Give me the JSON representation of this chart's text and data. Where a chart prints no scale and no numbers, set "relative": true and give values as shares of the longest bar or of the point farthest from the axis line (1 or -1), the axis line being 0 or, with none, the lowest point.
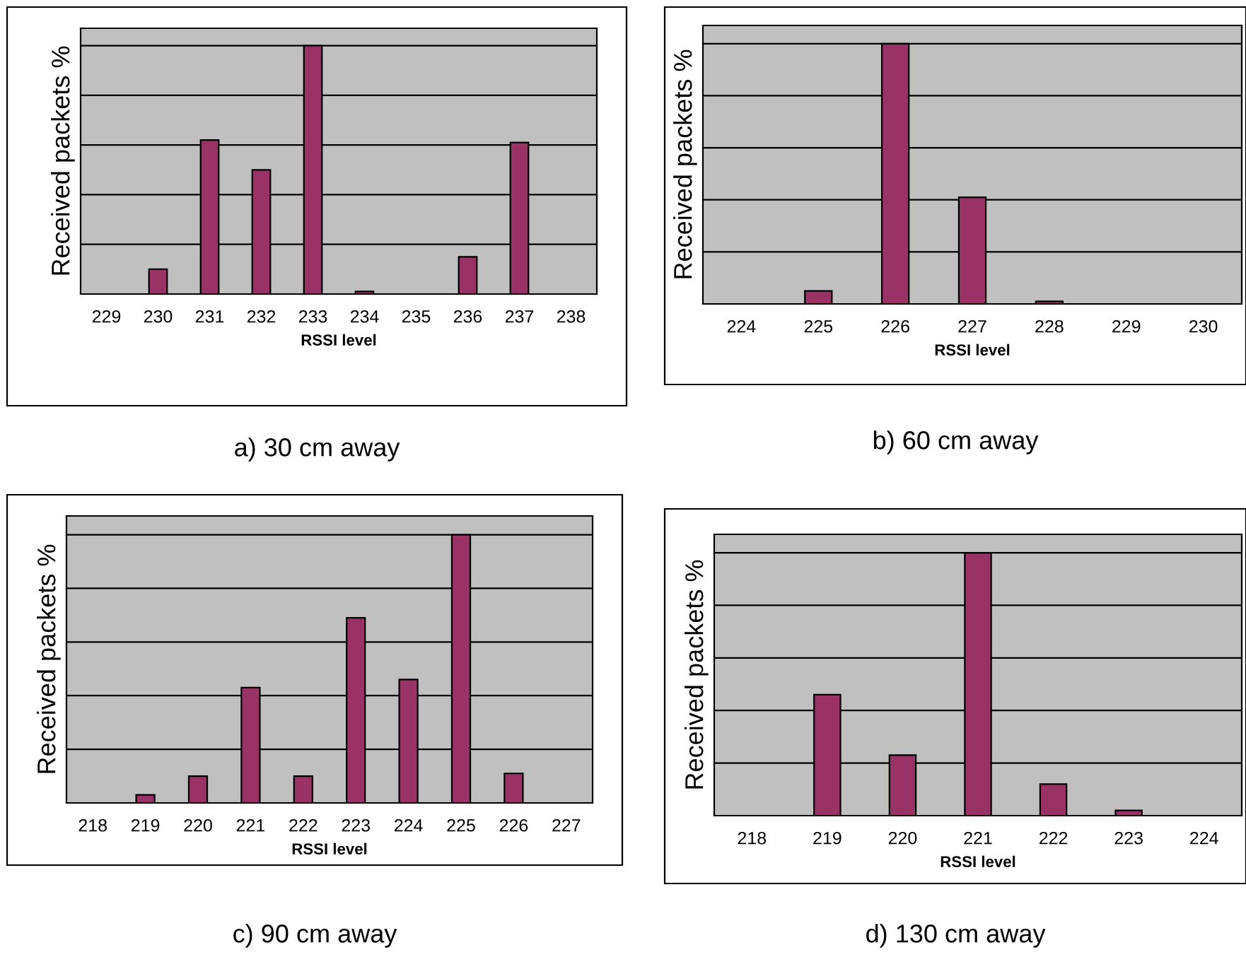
{
  "chart_data": [
    {
      "type": "bar",
      "relative": true,
      "categories": [
        "229",
        "230",
        "231",
        "232",
        "233",
        "234",
        "235",
        "236",
        "237",
        "238"
      ],
      "values": [
        0,
        0.1,
        0.62,
        0.5,
        1,
        0.01,
        0,
        0.15,
        0.61,
        0
      ],
      "color": "#993366",
      "xlabel": "RSSI level",
      "ylabel": "Received packets %",
      "grid": "y",
      "annotations": [
        "a) 30 cm away"
      ]
    },
    {
      "type": "bar",
      "relative": true,
      "categories": [
        "224",
        "225",
        "226",
        "227",
        "228",
        "229",
        "230"
      ],
      "values": [
        0,
        0.05,
        1,
        0.41,
        0.01,
        0,
        0
      ],
      "color": "#993366",
      "xlabel": "RSSI level",
      "ylabel": "Received packets %",
      "grid": "y",
      "annotations": [
        "b) 60 cm away"
      ]
    },
    {
      "type": "bar",
      "relative": true,
      "categories": [
        "218",
        "219",
        "220",
        "221",
        "222",
        "223",
        "224",
        "225",
        "226",
        "227"
      ],
      "values": [
        0,
        0.03,
        0.1,
        0.43,
        0.1,
        0.69,
        0.46,
        1,
        0.11,
        0
      ],
      "color": "#993366",
      "xlabel": "RSSI level",
      "ylabel": "Received packets %",
      "grid": "y",
      "annotations": [
        "c) 90 cm away"
      ]
    },
    {
      "type": "bar",
      "relative": true,
      "categories": [
        "218",
        "219",
        "220",
        "221",
        "222",
        "223",
        "224"
      ],
      "values": [
        0,
        0.46,
        0.23,
        1,
        0.12,
        0.02,
        0
      ],
      "color": "#993366",
      "xlabel": "RSSI level",
      "ylabel": "Received packets %",
      "grid": "y",
      "annotations": [
        "d) 130 cm away"
      ]
    }
  ]
}
